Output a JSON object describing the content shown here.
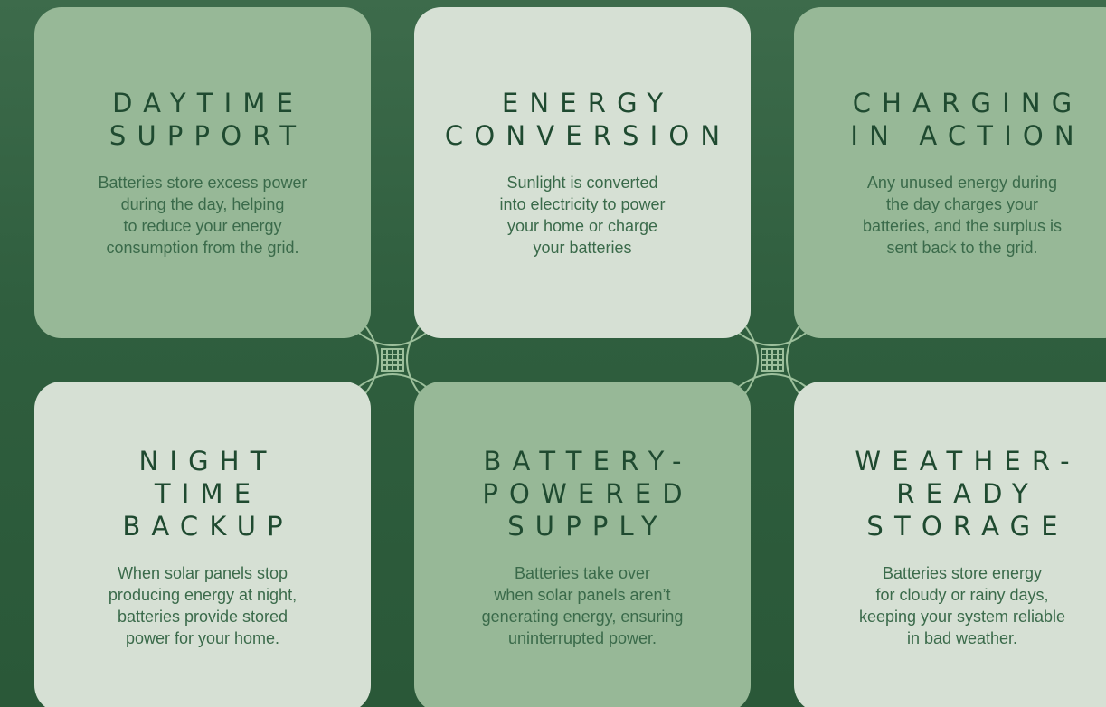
{
  "cards": [
    {
      "title": [
        "DAYTIME",
        "SUPPORT"
      ],
      "body": [
        "Batteries store excess power",
        "during the day, helping",
        "to reduce your energy",
        "consumption from the grid."
      ]
    },
    {
      "title": [
        "ENERGY",
        "CONVERSION"
      ],
      "body": [
        "Sunlight is converted",
        "into electricity to power",
        "your home or charge",
        "your batteries"
      ]
    },
    {
      "title": [
        "CHARGING",
        "IN ACTION"
      ],
      "body": [
        "Any unused energy during",
        "the day charges your",
        "batteries, and the surplus is",
        "sent back to the grid."
      ]
    },
    {
      "title": [
        "NIGHT",
        "TIME",
        "BACKUP"
      ],
      "body": [
        "When solar panels stop",
        "producing energy at night,",
        "batteries provide stored",
        "power for your home."
      ]
    },
    {
      "title": [
        "BATTERY-",
        "POWERED",
        "SUPPLY"
      ],
      "body": [
        "Batteries take over",
        "when solar panels aren’t",
        "generating energy, ensuring",
        "uninterrupted power."
      ]
    },
    {
      "title": [
        "WEATHER-",
        "READY",
        "STORAGE"
      ],
      "body": [
        "Batteries store energy",
        "for cloudy or rainy days,",
        "keeping your system reliable",
        "in bad weather."
      ]
    }
  ]
}
